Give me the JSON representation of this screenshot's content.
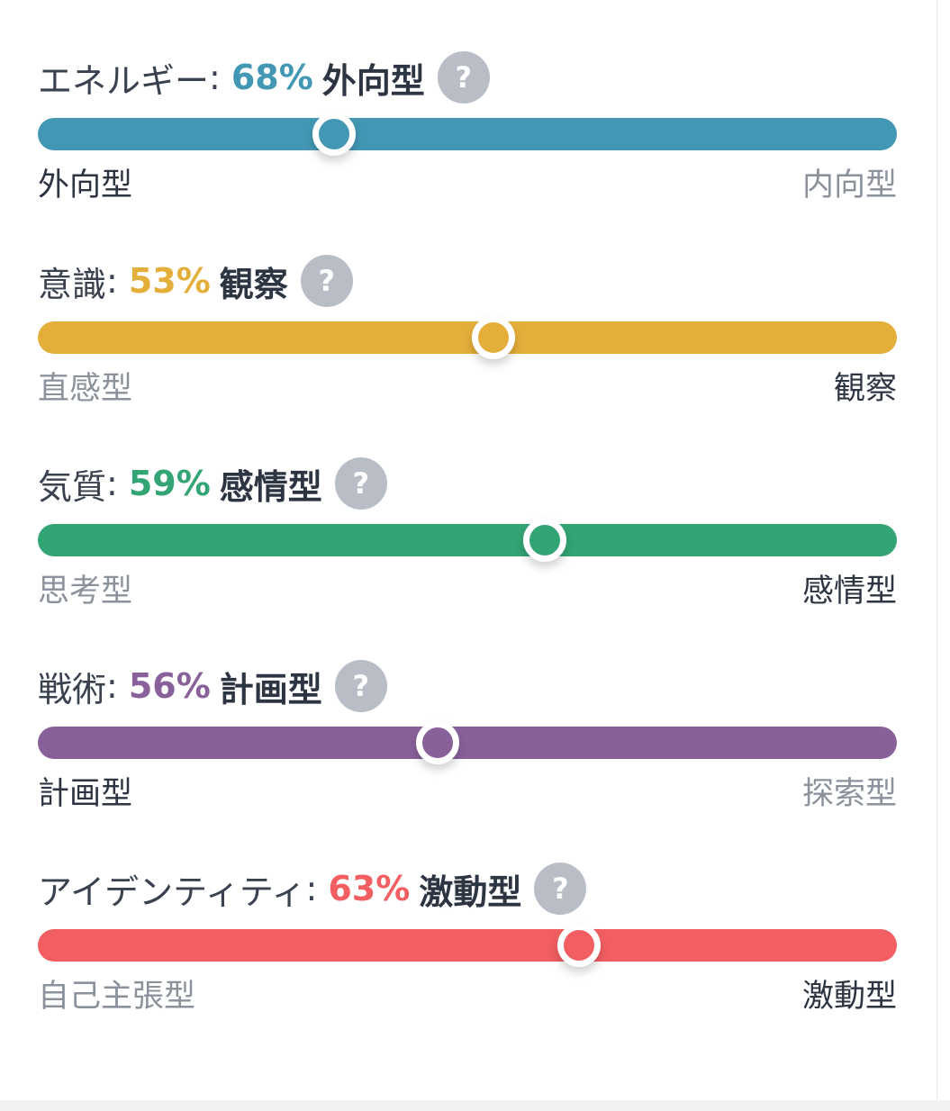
{
  "traits": [
    {
      "name": "エネルギー",
      "colon": ":",
      "percent": "68%",
      "result": "外向型",
      "left_label": "外向型",
      "right_label": "内向型",
      "active_side": "left",
      "slider_position": 0.345,
      "color": "#4298b4"
    },
    {
      "name": "意識",
      "colon": ":",
      "percent": "53%",
      "result": "観察",
      "left_label": "直感型",
      "right_label": "観察",
      "active_side": "right",
      "slider_position": 0.53,
      "color": "#e4ae3a"
    },
    {
      "name": "気質",
      "colon": ":",
      "percent": "59%",
      "result": "感情型",
      "left_label": "思考型",
      "right_label": "感情型",
      "active_side": "right",
      "slider_position": 0.59,
      "color": "#33a474"
    },
    {
      "name": "戦術",
      "colon": ":",
      "percent": "56%",
      "result": "計画型",
      "left_label": "計画型",
      "right_label": "探索型",
      "active_side": "left",
      "slider_position": 0.465,
      "color": "#88619a"
    },
    {
      "name": "アイデンティティ",
      "colon": ":",
      "percent": "63%",
      "result": "激動型",
      "left_label": "自己主張型",
      "right_label": "激動型",
      "active_side": "right",
      "slider_position": 0.63,
      "color": "#f25e62"
    }
  ],
  "help_icon": {
    "glyph": "?",
    "name": "question-icon"
  }
}
